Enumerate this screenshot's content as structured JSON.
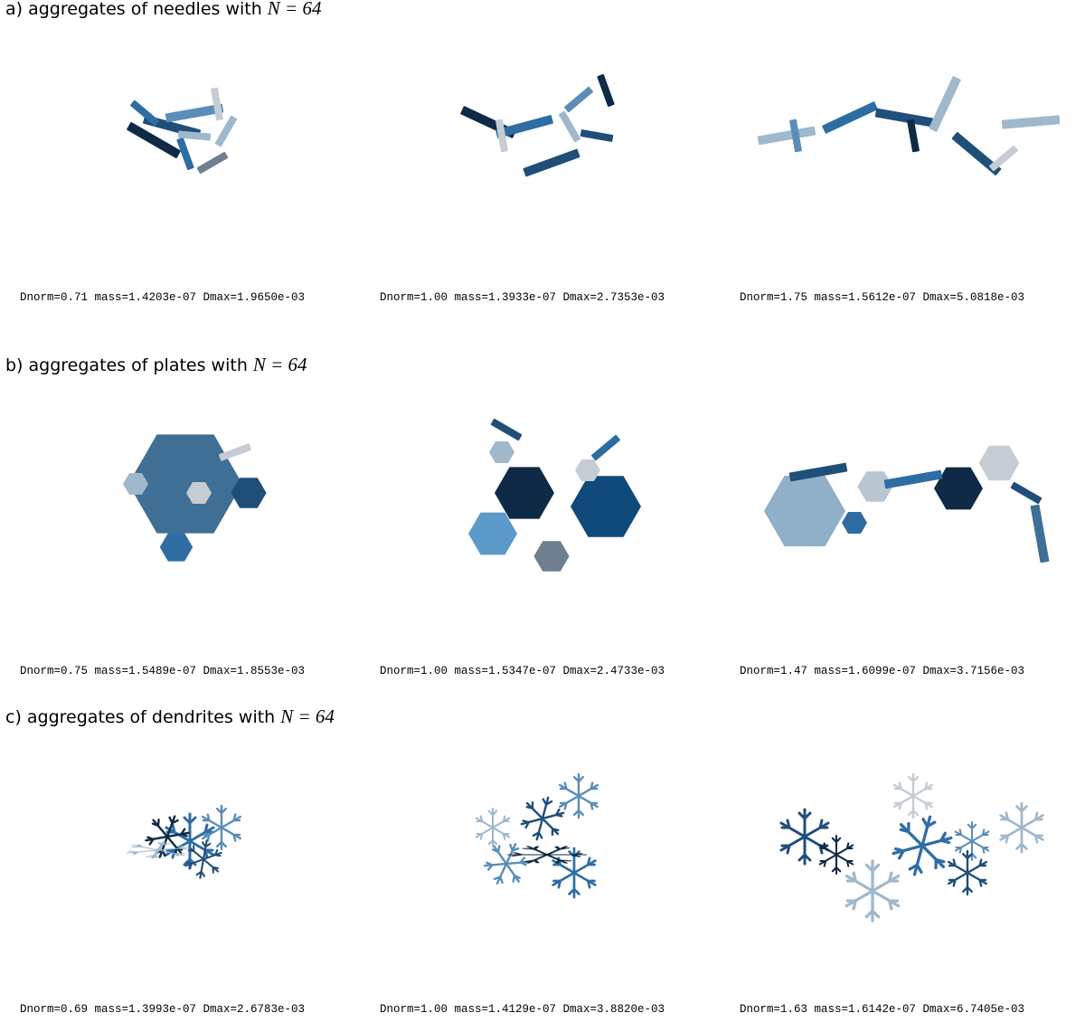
{
  "sections": [
    {
      "label": "a) aggregates of needles with",
      "math": "N = 64",
      "panels": [
        {
          "caption": "Dnorm=0.71 mass=1.4203e-07 Dmax=1.9650e-03"
        },
        {
          "caption": "Dnorm=1.00 mass=1.3933e-07 Dmax=2.7353e-03"
        },
        {
          "caption": "Dnorm=1.75 mass=1.5612e-07 Dmax=5.0818e-03"
        }
      ]
    },
    {
      "label": "b) aggregates of plates with",
      "math": "N = 64",
      "panels": [
        {
          "caption": "Dnorm=0.75 mass=1.5489e-07 Dmax=1.8553e-03"
        },
        {
          "caption": "Dnorm=1.00 mass=1.5347e-07 Dmax=2.4733e-03"
        },
        {
          "caption": "Dnorm=1.47 mass=1.6099e-07 Dmax=3.7156e-03"
        }
      ]
    },
    {
      "label": "c) aggregates of dendrites with",
      "math": "N = 64",
      "panels": [
        {
          "caption": "Dnorm=0.69 mass=1.3993e-07 Dmax=2.6783e-03"
        },
        {
          "caption": "Dnorm=1.00 mass=1.4129e-07 Dmax=3.8820e-03"
        },
        {
          "caption": "Dnorm=1.63 mass=1.6142e-07 Dmax=6.7405e-03"
        }
      ]
    }
  ]
}
